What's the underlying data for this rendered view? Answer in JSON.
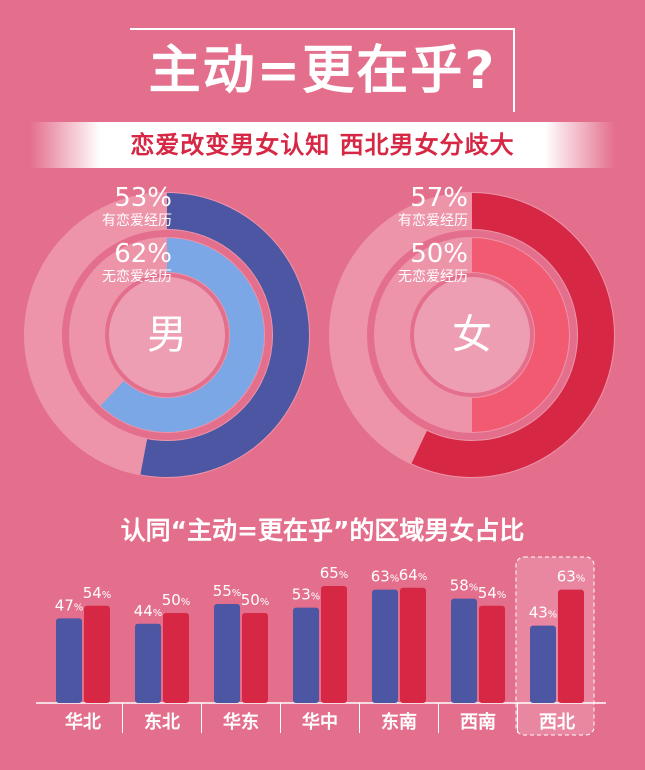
{
  "title": "主动=更在乎?",
  "subtitle": "恋爱改变男女认知  西北男女分歧大",
  "bar_title": "认同“主动=更在乎”的区域男女占比",
  "colors": {
    "background": "#e46f8c",
    "male_outer": "#4c56a3",
    "male_inner": "#7ba7e6",
    "female_outer": "#d62845",
    "female_inner": "#f25a72",
    "track": "#f4a3b5",
    "bar_male": "#4c56a3",
    "bar_female": "#d62845"
  },
  "donuts": [
    {
      "id": "male",
      "center_label": "男",
      "outer": {
        "pct_label": "53%",
        "label": "有恋爱经历",
        "value": 53
      },
      "inner": {
        "pct_label": "62%",
        "label": "无恋爱经历",
        "value": 62
      }
    },
    {
      "id": "female",
      "center_label": "女",
      "outer": {
        "pct_label": "57%",
        "label": "有恋爱经历",
        "value": 57
      },
      "inner": {
        "pct_label": "50%",
        "label": "无恋爱经历",
        "value": 50
      }
    }
  ],
  "chart_data": {
    "type": "bar",
    "title": "认同“主动=更在乎”的区域男女占比",
    "categories": [
      "华北",
      "东北",
      "华东",
      "华中",
      "东南",
      "西南",
      "西北"
    ],
    "series": [
      {
        "values": [
          47,
          44,
          55,
          53,
          63,
          58,
          43
        ]
      },
      {
        "values": [
          54,
          50,
          50,
          65,
          64,
          54,
          63
        ]
      }
    ],
    "labels_male": [
      "47",
      "44",
      "55",
      "53",
      "63",
      "58",
      "43"
    ],
    "labels_female": [
      "54",
      "50",
      "50",
      "65",
      "64",
      "54",
      "63"
    ],
    "unit": "%",
    "highlight": "西北"
  }
}
